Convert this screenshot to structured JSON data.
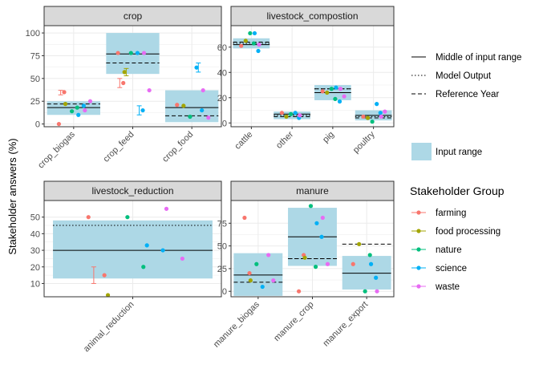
{
  "colors": {
    "farming": "#F8766D",
    "food processing": "#A3A500",
    "nature": "#00BF7D",
    "science": "#00B0F6",
    "waste": "#E76BF3",
    "input_range_fill": "#ADD8E6",
    "strip_fill": "#D9D9D9",
    "panel_border": "#333333",
    "grid": "#EBEBEB"
  },
  "chart_data": {
    "type": "faceted-range-scatter",
    "ylabel": "Stakeholder answers (%)",
    "grid": true,
    "legend_position": "right",
    "line_legend": [
      {
        "label": "Middle of input range",
        "dash": "solid"
      },
      {
        "label": "Model Output",
        "dash": "dotted"
      },
      {
        "label": "Reference Year",
        "dash": "dashed"
      }
    ],
    "fill_legend": {
      "label": "Input range"
    },
    "group_legend": {
      "title": "Stakeholder Group",
      "groups": [
        "farming",
        "food processing",
        "nature",
        "science",
        "waste"
      ]
    },
    "facets": [
      {
        "title": "crop",
        "ylim": [
          -3,
          108
        ],
        "yticks": [
          0,
          25,
          50,
          75,
          100
        ],
        "categories": [
          "crop_biogas",
          "crop_feed",
          "crop_food"
        ],
        "ranges": [
          [
            10,
            25
          ],
          [
            55,
            100
          ],
          [
            2,
            37
          ]
        ],
        "middle": [
          18,
          77,
          18
        ],
        "model_output": [
          null,
          null,
          null
        ],
        "reference": [
          22,
          67,
          9
        ],
        "points": [
          {
            "cat": "crop_biogas",
            "group": "farming",
            "values": [
              0,
              35
            ]
          },
          {
            "cat": "crop_biogas",
            "group": "food processing",
            "values": [
              22
            ]
          },
          {
            "cat": "crop_biogas",
            "group": "nature",
            "values": [
              14,
              18
            ]
          },
          {
            "cat": "crop_biogas",
            "group": "science",
            "values": [
              10,
              20
            ]
          },
          {
            "cat": "crop_biogas",
            "group": "waste",
            "values": [
              15,
              25
            ]
          },
          {
            "cat": "crop_feed",
            "group": "farming",
            "values": [
              78,
              45
            ]
          },
          {
            "cat": "crop_feed",
            "group": "food processing",
            "values": [
              57
            ]
          },
          {
            "cat": "crop_feed",
            "group": "nature",
            "values": [
              78
            ]
          },
          {
            "cat": "crop_feed",
            "group": "science",
            "values": [
              78,
              15
            ]
          },
          {
            "cat": "crop_feed",
            "group": "waste",
            "values": [
              78,
              37
            ]
          },
          {
            "cat": "crop_food",
            "group": "farming",
            "values": [
              21
            ]
          },
          {
            "cat": "crop_food",
            "group": "food processing",
            "values": [
              20
            ]
          },
          {
            "cat": "crop_food",
            "group": "nature",
            "values": [
              8
            ]
          },
          {
            "cat": "crop_food",
            "group": "science",
            "values": [
              62,
              15
            ]
          },
          {
            "cat": "crop_food",
            "group": "waste",
            "values": [
              37,
              7
            ]
          }
        ],
        "errorbars": [
          {
            "cat": "crop_biogas",
            "group": "farming",
            "range": [
              32,
              37
            ]
          },
          {
            "cat": "crop_feed",
            "group": "farming",
            "range": [
              40,
              50
            ]
          },
          {
            "cat": "crop_feed",
            "group": "food processing",
            "range": [
              53,
              61
            ]
          },
          {
            "cat": "crop_feed",
            "group": "science",
            "range": [
              10,
              20
            ]
          },
          {
            "cat": "crop_food",
            "group": "science",
            "range": [
              57,
              67
            ]
          }
        ]
      },
      {
        "title": "livestock_compostion",
        "ylim": [
          -3,
          77
        ],
        "yticks": [
          0,
          20,
          40,
          60
        ],
        "categories": [
          "cattle",
          "other",
          "pig",
          "poultry"
        ],
        "ranges": [
          [
            59,
            67
          ],
          [
            3,
            9
          ],
          [
            18,
            30
          ],
          [
            2,
            10
          ]
        ],
        "middle": [
          62,
          7,
          24,
          6
        ],
        "model_output": [
          63,
          6,
          27,
          5
        ],
        "reference": [
          64,
          5,
          27,
          4
        ],
        "points": [
          {
            "cat": "cattle",
            "group": "farming",
            "values": [
              61
            ]
          },
          {
            "cat": "cattle",
            "group": "food processing",
            "values": [
              65
            ]
          },
          {
            "cat": "cattle",
            "group": "nature",
            "values": [
              71,
              63
            ]
          },
          {
            "cat": "cattle",
            "group": "science",
            "values": [
              71,
              57
            ]
          },
          {
            "cat": "cattle",
            "group": "waste",
            "values": [
              62
            ]
          },
          {
            "cat": "other",
            "group": "farming",
            "values": [
              8
            ]
          },
          {
            "cat": "other",
            "group": "food processing",
            "values": [
              5
            ]
          },
          {
            "cat": "other",
            "group": "nature",
            "values": [
              7
            ]
          },
          {
            "cat": "other",
            "group": "science",
            "values": [
              8,
              4
            ]
          },
          {
            "cat": "other",
            "group": "waste",
            "values": [
              6
            ]
          },
          {
            "cat": "pig",
            "group": "farming",
            "values": [
              25
            ]
          },
          {
            "cat": "pig",
            "group": "food processing",
            "values": [
              24
            ]
          },
          {
            "cat": "pig",
            "group": "nature",
            "values": [
              27,
              19
            ]
          },
          {
            "cat": "pig",
            "group": "science",
            "values": [
              28,
              17
            ]
          },
          {
            "cat": "pig",
            "group": "waste",
            "values": [
              27,
              21
            ]
          },
          {
            "cat": "poultry",
            "group": "farming",
            "values": [
              5
            ]
          },
          {
            "cat": "poultry",
            "group": "food processing",
            "values": [
              4
            ]
          },
          {
            "cat": "poultry",
            "group": "nature",
            "values": [
              1
            ]
          },
          {
            "cat": "poultry",
            "group": "science",
            "values": [
              15,
              8
            ]
          },
          {
            "cat": "poultry",
            "group": "waste",
            "values": [
              5,
              9
            ]
          }
        ],
        "errorbars": []
      },
      {
        "title": "livestock_reduction",
        "ylim": [
          2,
          60
        ],
        "yticks": [
          10,
          20,
          30,
          40,
          50
        ],
        "categories": [
          "animal_reduction"
        ],
        "ranges": [
          [
            13,
            48
          ]
        ],
        "middle": [
          30
        ],
        "model_output": [
          45
        ],
        "reference": [
          null
        ],
        "points": [
          {
            "cat": "animal_reduction",
            "group": "farming",
            "values": [
              50,
              15
            ]
          },
          {
            "cat": "animal_reduction",
            "group": "food processing",
            "values": [
              3
            ]
          },
          {
            "cat": "animal_reduction",
            "group": "nature",
            "values": [
              50,
              20
            ]
          },
          {
            "cat": "animal_reduction",
            "group": "science",
            "values": [
              33,
              30
            ]
          },
          {
            "cat": "animal_reduction",
            "group": "waste",
            "values": [
              55,
              25
            ]
          }
        ],
        "errorbars": [
          {
            "cat": "animal_reduction",
            "group": "farming",
            "range": [
              10,
              20
            ]
          }
        ]
      },
      {
        "title": "manure",
        "ylim": [
          -6,
          100
        ],
        "yticks": [
          0,
          25,
          50,
          75
        ],
        "categories": [
          "manure_biogas",
          "manure_crop",
          "manure_export"
        ],
        "ranges": [
          [
            -5,
            42
          ],
          [
            28,
            92
          ],
          [
            2,
            39
          ]
        ],
        "middle": [
          18,
          60,
          20
        ],
        "model_output": [
          null,
          36,
          null
        ],
        "reference": [
          10,
          36,
          52
        ],
        "points": [
          {
            "cat": "manure_biogas",
            "group": "farming",
            "values": [
              81,
              20
            ]
          },
          {
            "cat": "manure_biogas",
            "group": "food processing",
            "values": [
              12
            ]
          },
          {
            "cat": "manure_biogas",
            "group": "nature",
            "values": [
              30
            ]
          },
          {
            "cat": "manure_biogas",
            "group": "science",
            "values": [
              5
            ]
          },
          {
            "cat": "manure_biogas",
            "group": "waste",
            "values": [
              40,
              12
            ]
          },
          {
            "cat": "manure_crop",
            "group": "farming",
            "values": [
              0,
              40
            ]
          },
          {
            "cat": "manure_crop",
            "group": "food processing",
            "values": [
              37
            ]
          },
          {
            "cat": "manure_crop",
            "group": "nature",
            "values": [
              94,
              27
            ]
          },
          {
            "cat": "manure_crop",
            "group": "science",
            "values": [
              75,
              60
            ]
          },
          {
            "cat": "manure_crop",
            "group": "waste",
            "values": [
              81,
              30
            ]
          },
          {
            "cat": "manure_export",
            "group": "farming",
            "values": [
              30
            ]
          },
          {
            "cat": "manure_export",
            "group": "food processing",
            "values": [
              52
            ]
          },
          {
            "cat": "manure_export",
            "group": "nature",
            "values": [
              0,
              40
            ]
          },
          {
            "cat": "manure_export",
            "group": "science",
            "values": [
              30,
              15
            ]
          },
          {
            "cat": "manure_export",
            "group": "waste",
            "values": [
              0
            ]
          }
        ],
        "errorbars": []
      }
    ]
  }
}
